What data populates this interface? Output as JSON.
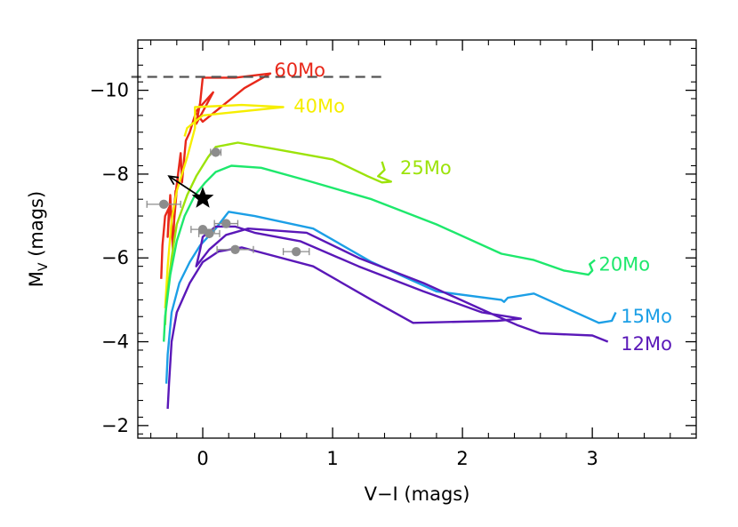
{
  "chart_data": {
    "type": "line",
    "xlabel": "V−I (mags)",
    "ylabel_main": "M",
    "ylabel_sub": "V",
    "ylabel_suffix": " (mags)",
    "xlim": [
      -0.5,
      3.8
    ],
    "ylim": [
      -1.7,
      -11.2
    ],
    "x_ticks": [
      0,
      1,
      2,
      3
    ],
    "x_tick_labels": [
      "0",
      "1",
      "2",
      "3"
    ],
    "y_ticks": [
      -2,
      -4,
      -6,
      -8,
      -10
    ],
    "y_tick_labels": [
      "−2",
      "−4",
      "−6",
      "−8",
      "−10"
    ],
    "grid": false,
    "reference_line": {
      "y": -10.32,
      "x": [
        -0.55,
        1.4
      ],
      "color": "#555555",
      "dashed": true
    },
    "series": [
      {
        "name": "60Mo",
        "color": "#e8281a",
        "label_color": "#e8281a",
        "points": [
          [
            -0.32,
            -5.5
          ],
          [
            -0.31,
            -6.3
          ],
          [
            -0.29,
            -7.0
          ],
          [
            -0.26,
            -7.2
          ],
          [
            -0.27,
            -6.5
          ],
          [
            -0.25,
            -7.5
          ],
          [
            -0.23,
            -6.2
          ],
          [
            -0.21,
            -7.6
          ],
          [
            -0.22,
            -6.9
          ],
          [
            -0.19,
            -8.0
          ],
          [
            -0.23,
            -7.0
          ],
          [
            -0.17,
            -8.5
          ],
          [
            -0.16,
            -7.8
          ],
          [
            -0.13,
            -8.8
          ],
          [
            -0.1,
            -9.0
          ],
          [
            -0.05,
            -9.5
          ],
          [
            0.08,
            -9.95
          ],
          [
            -0.05,
            -9.2
          ],
          [
            -0.02,
            -9.7
          ],
          [
            0.0,
            -10.3
          ],
          [
            0.25,
            -10.3
          ],
          [
            0.52,
            -10.4
          ],
          [
            0.32,
            -10.05
          ],
          [
            0.0,
            -9.25
          ],
          [
            -0.05,
            -9.45
          ]
        ]
      },
      {
        "name": "40Mo",
        "color": "#f6ee00",
        "label_color": "#f6ee00",
        "points": [
          [
            -0.29,
            -4.8
          ],
          [
            -0.27,
            -5.8
          ],
          [
            -0.24,
            -6.9
          ],
          [
            -0.2,
            -7.6
          ],
          [
            -0.12,
            -8.4
          ],
          [
            -0.06,
            -9.1
          ],
          [
            -0.06,
            -9.6
          ],
          [
            0.3,
            -9.65
          ],
          [
            0.62,
            -9.6
          ],
          [
            0.0,
            -9.4
          ],
          [
            -0.12,
            -9.1
          ],
          [
            -0.14,
            -8.9
          ]
        ]
      },
      {
        "name": "25Mo",
        "color": "#9ce30a",
        "label_color": "#9ce30a",
        "points": [
          [
            -0.29,
            -4.4
          ],
          [
            -0.28,
            -5.0
          ],
          [
            -0.24,
            -6.0
          ],
          [
            -0.2,
            -6.8
          ],
          [
            -0.12,
            -7.5
          ],
          [
            -0.05,
            -7.95
          ],
          [
            0.04,
            -8.4
          ],
          [
            0.1,
            -8.65
          ],
          [
            0.27,
            -8.75
          ],
          [
            0.55,
            -8.6
          ],
          [
            1.0,
            -8.35
          ],
          [
            1.27,
            -7.95
          ],
          [
            1.38,
            -7.8
          ],
          [
            1.45,
            -7.82
          ],
          [
            1.35,
            -7.95
          ],
          [
            1.4,
            -8.1
          ],
          [
            1.38,
            -8.3
          ]
        ]
      },
      {
        "name": "20Mo",
        "color": "#1ee86c",
        "label_color": "#1ee86c",
        "points": [
          [
            -0.3,
            -4.0
          ],
          [
            -0.29,
            -4.6
          ],
          [
            -0.25,
            -5.6
          ],
          [
            -0.2,
            -6.4
          ],
          [
            -0.14,
            -7.0
          ],
          [
            -0.06,
            -7.5
          ],
          [
            0.02,
            -7.8
          ],
          [
            0.1,
            -8.05
          ],
          [
            0.22,
            -8.2
          ],
          [
            0.45,
            -8.15
          ],
          [
            0.8,
            -7.85
          ],
          [
            1.3,
            -7.4
          ],
          [
            1.8,
            -6.8
          ],
          [
            2.3,
            -6.1
          ],
          [
            2.55,
            -5.95
          ],
          [
            2.78,
            -5.7
          ],
          [
            2.97,
            -5.6
          ],
          [
            3.0,
            -5.7
          ],
          [
            2.98,
            -5.85
          ],
          [
            3.02,
            -5.95
          ]
        ]
      },
      {
        "name": "15Mo",
        "color": "#1c9fe6",
        "label_color": "#1c9fe6",
        "points": [
          [
            -0.28,
            -3.0
          ],
          [
            -0.27,
            -3.7
          ],
          [
            -0.24,
            -4.7
          ],
          [
            -0.18,
            -5.4
          ],
          [
            -0.1,
            -5.9
          ],
          [
            -0.02,
            -6.3
          ],
          [
            0.1,
            -6.7
          ],
          [
            0.2,
            -7.1
          ],
          [
            0.4,
            -7.0
          ],
          [
            0.85,
            -6.7
          ],
          [
            1.3,
            -5.9
          ],
          [
            1.8,
            -5.2
          ],
          [
            2.3,
            -5.0
          ],
          [
            2.32,
            -4.95
          ],
          [
            2.35,
            -5.05
          ],
          [
            2.55,
            -5.15
          ],
          [
            2.8,
            -4.8
          ],
          [
            3.05,
            -4.45
          ],
          [
            3.15,
            -4.5
          ],
          [
            3.18,
            -4.7
          ]
        ]
      },
      {
        "name": "12Mo",
        "color": "#5a18b8",
        "label_color": "#5a18b8",
        "points": [
          [
            -0.27,
            -2.4
          ],
          [
            -0.26,
            -3.0
          ],
          [
            -0.24,
            -4.0
          ],
          [
            -0.2,
            -4.7
          ],
          [
            -0.1,
            -5.4
          ],
          [
            0.0,
            -5.9
          ],
          [
            0.12,
            -6.15
          ],
          [
            0.3,
            -6.25
          ],
          [
            0.85,
            -5.8
          ],
          [
            1.3,
            -5.0
          ],
          [
            1.62,
            -4.45
          ],
          [
            2.27,
            -4.5
          ],
          [
            2.45,
            -4.55
          ],
          [
            2.15,
            -4.7
          ],
          [
            1.7,
            -5.2
          ],
          [
            1.2,
            -5.8
          ],
          [
            0.75,
            -6.4
          ],
          [
            0.4,
            -6.6
          ],
          [
            0.25,
            -6.75
          ],
          [
            0.1,
            -6.75
          ],
          [
            0.0,
            -6.5
          ],
          [
            -0.02,
            -6.2
          ],
          [
            -0.05,
            -5.8
          ],
          [
            0.05,
            -6.2
          ],
          [
            0.18,
            -6.55
          ],
          [
            0.35,
            -6.7
          ],
          [
            0.8,
            -6.6
          ],
          [
            1.2,
            -6.0
          ],
          [
            1.7,
            -5.4
          ],
          [
            2.2,
            -4.7
          ],
          [
            2.42,
            -4.4
          ],
          [
            2.6,
            -4.2
          ],
          [
            3.0,
            -4.15
          ],
          [
            3.12,
            -4.0
          ]
        ]
      }
    ],
    "labels": [
      {
        "text": "60Mo",
        "x": 0.55,
        "y": -10.48,
        "series": "60Mo"
      },
      {
        "text": "40Mo",
        "x": 0.7,
        "y": -9.62,
        "series": "40Mo"
      },
      {
        "text": "25Mo",
        "x": 1.52,
        "y": -8.15,
        "series": "25Mo"
      },
      {
        "text": "20Mo",
        "x": 3.05,
        "y": -5.85,
        "series": "20Mo"
      },
      {
        "text": "15Mo",
        "x": 3.22,
        "y": -4.6,
        "series": "15Mo"
      },
      {
        "text": "12Mo",
        "x": 3.22,
        "y": -3.95,
        "series": "12Mo"
      }
    ],
    "observations": {
      "color": "#8c8c8c",
      "points": [
        {
          "x": -0.3,
          "y": -7.28,
          "xerr": 0.13
        },
        {
          "x": 0.1,
          "y": -8.52,
          "xerr": 0.04
        },
        {
          "x": 0.0,
          "y": -6.68,
          "xerr": 0.09
        },
        {
          "x": 0.05,
          "y": -6.58,
          "xerr": 0.08
        },
        {
          "x": 0.18,
          "y": -6.82,
          "xerr": 0.09
        },
        {
          "x": 0.25,
          "y": -6.2,
          "xerr": 0.14
        },
        {
          "x": 0.72,
          "y": -6.15,
          "xerr": 0.1
        }
      ]
    },
    "star": {
      "x": 0.0,
      "y": -7.42
    },
    "arrow": {
      "from": [
        0.0,
        -7.42
      ],
      "to": [
        -0.26,
        -7.95
      ]
    }
  }
}
